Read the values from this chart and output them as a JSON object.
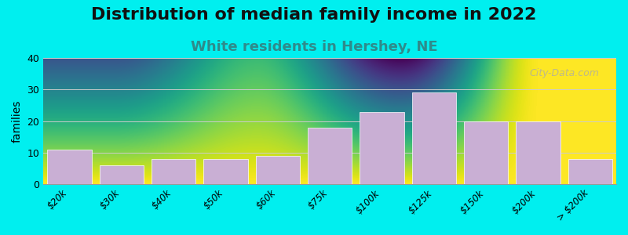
{
  "title": "Distribution of median family income in 2022",
  "subtitle": "White residents in Hershey, NE",
  "categories": [
    "$20k",
    "$30k",
    "$40k",
    "$50k",
    "$60k",
    "$75k",
    "$100k",
    "$125k",
    "$150k",
    "$200k",
    "> $200k"
  ],
  "values": [
    11,
    6,
    8,
    8,
    9,
    18,
    23,
    29,
    20,
    20,
    8
  ],
  "bar_color": "#c9afd4",
  "background_outer": "#00efef",
  "plot_bg_top": "#e8f5e0",
  "plot_bg_bottom": "#ffffff",
  "ylabel": "families",
  "ylim": [
    0,
    40
  ],
  "yticks": [
    0,
    10,
    20,
    30,
    40
  ],
  "title_fontsize": 16,
  "subtitle_fontsize": 13,
  "subtitle_color": "#2e8b8b",
  "watermark": "City-Data.com"
}
